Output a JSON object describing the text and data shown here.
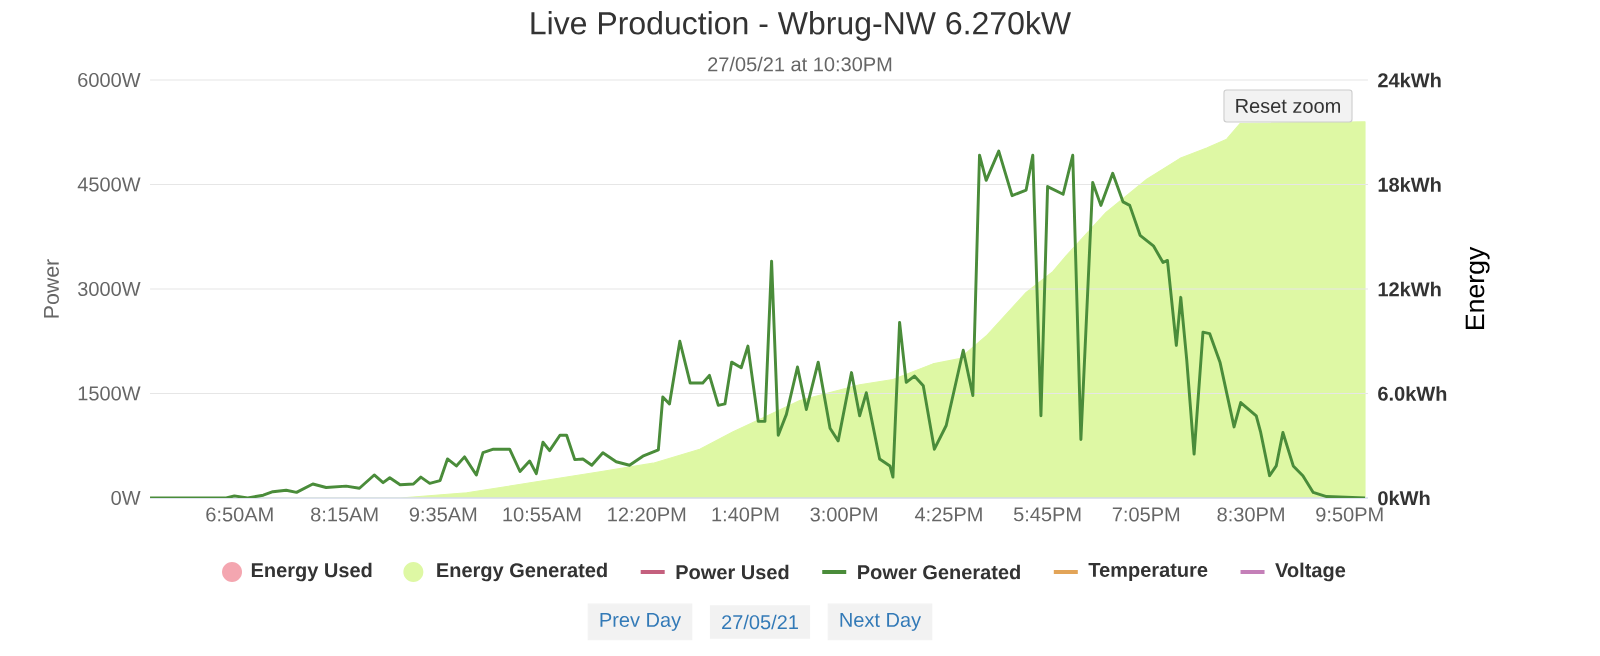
{
  "chart_data": {
    "type": "line",
    "title": "Live Production - Wbrug-NW 6.270kW",
    "subtitle": "27/05/21 at 10:30PM",
    "ylabel": "Power",
    "y2label": "Energy",
    "annotations": [
      "Reset zoom",
      "Prev Day",
      "27/05/21",
      "Next Day"
    ],
    "xlim": [
      5.62,
      22.08
    ],
    "xticks": [
      {
        "value": 6.8333,
        "label": "6:50AM"
      },
      {
        "value": 8.25,
        "label": "8:15AM"
      },
      {
        "value": 9.5833,
        "label": "9:35AM"
      },
      {
        "value": 10.9167,
        "label": "10:55AM"
      },
      {
        "value": 12.3333,
        "label": "12:20PM"
      },
      {
        "value": 13.6667,
        "label": "1:40PM"
      },
      {
        "value": 15.0,
        "label": "3:00PM"
      },
      {
        "value": 16.4167,
        "label": "4:25PM"
      },
      {
        "value": 17.75,
        "label": "5:45PM"
      },
      {
        "value": 19.0833,
        "label": "7:05PM"
      },
      {
        "value": 20.5,
        "label": "8:30PM"
      },
      {
        "value": 21.8333,
        "label": "9:50PM"
      }
    ],
    "ylim": [
      0,
      6000
    ],
    "yticks": [
      {
        "value": 0,
        "label": "0W"
      },
      {
        "value": 1500,
        "label": "1500W"
      },
      {
        "value": 3000,
        "label": "3000W"
      },
      {
        "value": 4500,
        "label": "4500W"
      },
      {
        "value": 6000,
        "label": "6000W"
      }
    ],
    "y2lim": [
      0,
      24
    ],
    "y2ticks": [
      {
        "value": 0,
        "label": "0kWh"
      },
      {
        "value": 6,
        "label": "6.0kWh"
      },
      {
        "value": 12,
        "label": "12kWh"
      },
      {
        "value": 18,
        "label": "18kWh"
      },
      {
        "value": 24,
        "label": "24kWh"
      }
    ],
    "grid": "y",
    "legend": "bottom",
    "series": [
      {
        "name": "Energy Used",
        "type": "area",
        "axis": "y2",
        "color": "#f4a6b0"
      },
      {
        "name": "Energy Generated",
        "type": "area",
        "axis": "y2",
        "color": "#def8a4",
        "x": [
          5.62,
          9.0,
          9.9,
          10.8,
          11.7,
          12.42,
          13.05,
          13.5,
          13.95,
          14.4,
          15.21,
          15.66,
          16.2,
          16.56,
          16.92,
          17.46,
          17.82,
          18.0,
          18.54,
          19.09,
          19.54,
          19.9,
          20.17,
          20.35,
          22.04
        ],
        "values": [
          0,
          0,
          0.3,
          0.9,
          1.5,
          2.0,
          2.8,
          3.8,
          4.7,
          5.6,
          6.5,
          6.8,
          7.7,
          8.0,
          9.3,
          11.8,
          13.0,
          13.9,
          16.4,
          18.3,
          19.5,
          20.1,
          20.6,
          21.5,
          21.6
        ]
      },
      {
        "name": "Power Used",
        "axis": "y",
        "color": "#c4607e"
      },
      {
        "name": "Power Generated",
        "axis": "y",
        "color": "#4a8c3a",
        "x": [
          5.62,
          6.65,
          6.76,
          6.94,
          7.15,
          7.28,
          7.46,
          7.6,
          7.82,
          8.0,
          8.27,
          8.45,
          8.65,
          8.77,
          8.86,
          9.0,
          9.18,
          9.28,
          9.4,
          9.54,
          9.64,
          9.76,
          9.87,
          10.03,
          10.12,
          10.26,
          10.48,
          10.62,
          10.75,
          10.84,
          10.93,
          11.02,
          11.16,
          11.25,
          11.36,
          11.47,
          11.59,
          11.74,
          11.92,
          12.1,
          12.28,
          12.49,
          12.55,
          12.64,
          12.78,
          12.92,
          13.09,
          13.18,
          13.3,
          13.39,
          13.48,
          13.61,
          13.7,
          13.84,
          13.93,
          14.02,
          14.11,
          14.22,
          14.37,
          14.49,
          14.65,
          14.76,
          14.81,
          14.92,
          15.1,
          15.21,
          15.3,
          15.48,
          15.62,
          15.66,
          15.75,
          15.84,
          15.95,
          16.07,
          16.22,
          16.38,
          16.61,
          16.74,
          16.83,
          16.92,
          17.09,
          17.27,
          17.46,
          17.55,
          17.66,
          17.75,
          17.96,
          18.09,
          18.2,
          18.36,
          18.47,
          18.63,
          18.77,
          18.86,
          19.0,
          19.18,
          19.31,
          19.37,
          19.49,
          19.55,
          19.63,
          19.73,
          19.85,
          19.94,
          20.08,
          20.27,
          20.36,
          20.57,
          20.63,
          20.75,
          20.84,
          20.93,
          21.07,
          21.2,
          21.34,
          21.52,
          22.04
        ],
        "values": [
          0,
          0,
          30,
          0,
          40,
          90,
          110,
          80,
          200,
          150,
          170,
          140,
          330,
          220,
          290,
          190,
          200,
          300,
          210,
          250,
          560,
          460,
          590,
          330,
          650,
          700,
          700,
          380,
          530,
          350,
          800,
          680,
          900,
          900,
          550,
          560,
          470,
          650,
          520,
          470,
          600,
          690,
          1450,
          1350,
          2250,
          1650,
          1650,
          1760,
          1330,
          1350,
          1950,
          1870,
          2180,
          1100,
          1100,
          3400,
          900,
          1200,
          1880,
          1270,
          1950,
          1300,
          1000,
          820,
          1800,
          1180,
          1510,
          560,
          460,
          300,
          2520,
          1660,
          1750,
          1610,
          700,
          1040,
          2120,
          1470,
          4920,
          4560,
          4980,
          4340,
          4420,
          4920,
          1180,
          4470,
          4360,
          4920,
          840,
          4530,
          4200,
          4660,
          4250,
          4200,
          3770,
          3620,
          3380,
          3410,
          2190,
          2880,
          1990,
          630,
          2380,
          2360,
          1950,
          1020,
          1370,
          1180,
          940,
          320,
          460,
          940,
          460,
          320,
          80,
          20,
          0
        ]
      },
      {
        "name": "Temperature",
        "axis": "y",
        "color": "#e2a458"
      },
      {
        "name": "Voltage",
        "axis": "y",
        "color": "#c47fb8"
      }
    ]
  }
}
